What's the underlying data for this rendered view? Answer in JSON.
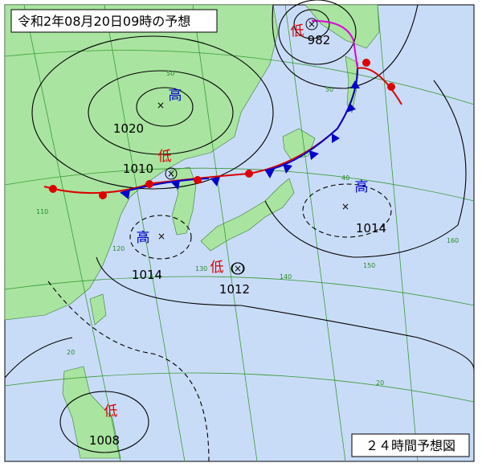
{
  "header": {
    "title": "令和2年08月20日09時の予想"
  },
  "footer": {
    "label": "２４時間予想図"
  },
  "systems": [
    {
      "kind": "高",
      "pressure": 1020
    },
    {
      "kind": "低",
      "pressure": 1010
    },
    {
      "kind": "低",
      "pressure": 982
    },
    {
      "kind": "高",
      "pressure": 1014
    },
    {
      "kind": "高",
      "pressure": 1014
    },
    {
      "kind": "低",
      "pressure": 1012
    },
    {
      "kind": "低",
      "pressure": 1008
    }
  ],
  "grid_labels": [
    "50",
    "50",
    "40",
    "20",
    "20",
    "110",
    "120",
    "130",
    "140",
    "150",
    "160"
  ]
}
